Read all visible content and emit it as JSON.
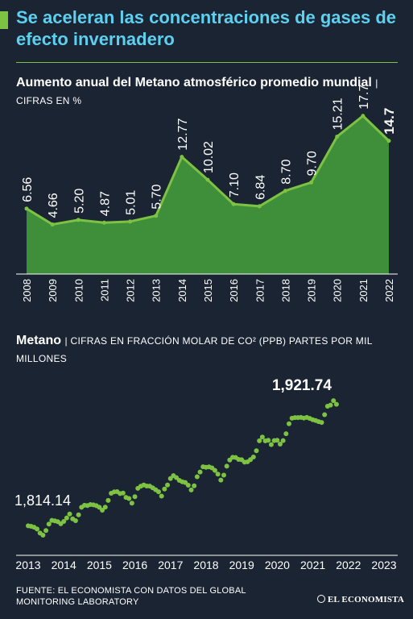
{
  "header": {
    "title": "Se aceleran las concentraciones de gases de efecto invernadero"
  },
  "section1": {
    "title": "Aumento anual del Metano atmosférico promedio mundial",
    "unit": "| CIFRAS EN %"
  },
  "section2": {
    "title": "Metano",
    "unit": "| CIFRAS EN FRACCIÓN MOLAR DE CO² (PPB) PARTES POR MIL MILLONES"
  },
  "footer": {
    "source": "FUENTE: EL ECONOMISTA CON DATOS DEL GLOBAL MONITORING LABORATORY",
    "logo": "EL ECONOMISTA"
  },
  "colors": {
    "background": "#1b2433",
    "title": "#5dd0f0",
    "accent_green": "#7dc242",
    "area_fill": "#3f8f3a"
  },
  "chart_data": [
    {
      "type": "area",
      "x": [
        "2008",
        "2009",
        "2010",
        "2011",
        "2012",
        "2013",
        "2014",
        "2015",
        "2016",
        "2017",
        "2018",
        "2019",
        "2020",
        "2021",
        "2022"
      ],
      "values": [
        6.56,
        4.66,
        5.2,
        4.87,
        5.01,
        5.7,
        12.77,
        10.02,
        7.1,
        6.84,
        8.7,
        9.7,
        15.21,
        17.7,
        14.7
      ],
      "value_labels": [
        "6.56",
        "4.66",
        "5.20",
        "4.87",
        "5.01",
        "5.70",
        "12.77",
        "10.02",
        "7.10",
        "6.84",
        "8.70",
        "9.70",
        "15.21",
        "17.7",
        "14.7"
      ],
      "highlight_last": true,
      "ylim": [
        -1.3,
        20
      ],
      "grid": false
    },
    {
      "type": "scatter",
      "x_ticks": [
        "2013",
        "2014",
        "2015",
        "2016",
        "2017",
        "2018",
        "2019",
        "2020",
        "2021",
        "2022",
        "2023"
      ],
      "x_start": 2013.0,
      "x_step": 0.0833,
      "values": [
        1814.14,
        1813.7,
        1812.9,
        1811.4,
        1807.9,
        1806.1,
        1810.1,
        1815.6,
        1818.8,
        1818.4,
        1817.7,
        1815.9,
        1817.9,
        1820.9,
        1824.3,
        1820.1,
        1818.6,
        1823.6,
        1830.1,
        1831.8,
        1831.6,
        1832.4,
        1832.2,
        1831.5,
        1830.1,
        1827.6,
        1830.2,
        1836.0,
        1842.1,
        1843.3,
        1843.5,
        1841.9,
        1842.3,
        1838.6,
        1837.6,
        1833.6,
        1839.2,
        1846.4,
        1848.2,
        1849.2,
        1848.4,
        1848.3,
        1846.8,
        1845.2,
        1843.4,
        1839.7,
        1845.8,
        1849.2,
        1854.8,
        1857.3,
        1855.6,
        1853.2,
        1852.0,
        1851.4,
        1849.1,
        1845.0,
        1848.5,
        1856.3,
        1860.4,
        1864.9,
        1864.5,
        1864.8,
        1864.0,
        1861.8,
        1858.6,
        1853.5,
        1857.7,
        1865.4,
        1870.7,
        1873.1,
        1872.9,
        1871.2,
        1871.0,
        1868.9,
        1869.2,
        1871.1,
        1873.3,
        1878.7,
        1887.3,
        1890.5,
        1887.2,
        1887.7,
        1884.0,
        1887.4,
        1887.7,
        1884.4,
        1887.4,
        1893.3,
        1901.9,
        1906.7,
        1907.2,
        1907.2,
        1907.4,
        1906.8,
        1907.4,
        1906.5,
        1905.4,
        1904.7,
        1903.7,
        1903.0,
        1909.7,
        1917.0,
        1917.9,
        1921.74,
        1918.6
      ],
      "label_first": "1,814.14",
      "label_last": "1,921.74",
      "ylim": [
        1795,
        1935
      ],
      "grid": false
    }
  ]
}
